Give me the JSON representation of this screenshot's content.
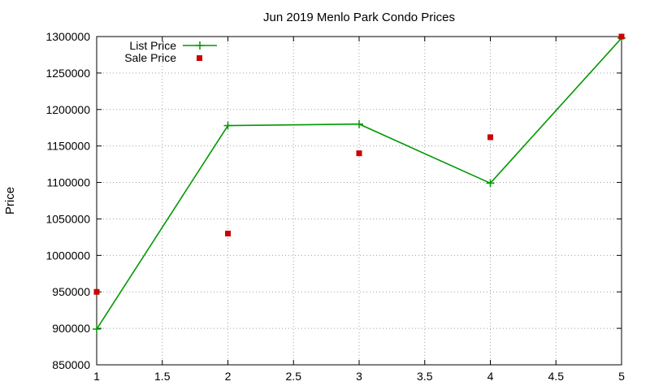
{
  "chart_data": {
    "type": "line",
    "title": "Jun 2019 Menlo Park Condo Prices",
    "xlabel": "",
    "ylabel": "Price",
    "xlim": [
      1,
      5
    ],
    "ylim": [
      850000,
      1300000
    ],
    "x_ticks": [
      1,
      1.5,
      2,
      2.5,
      3,
      3.5,
      4,
      4.5,
      5
    ],
    "y_ticks": [
      850000,
      900000,
      950000,
      1000000,
      1050000,
      1100000,
      1150000,
      1200000,
      1250000,
      1300000
    ],
    "x_tick_labels": [
      "1",
      "1.5",
      "2",
      "2.5",
      "3",
      "3.5",
      "4",
      "4.5",
      "5"
    ],
    "y_tick_labels": [
      "850000",
      "900000",
      "950000",
      "1000000",
      "1050000",
      "1100000",
      "1150000",
      "1200000",
      "1250000",
      "1300000"
    ],
    "grid": true,
    "legend_position": "top-left",
    "series": [
      {
        "name": "List Price",
        "style": "line-with-plus-markers",
        "color": "#009900",
        "x": [
          1,
          2,
          3,
          4,
          5
        ],
        "y": [
          899000,
          1178000,
          1180000,
          1099000,
          1298000
        ]
      },
      {
        "name": "Sale Price",
        "style": "square-markers",
        "color": "#cc0000",
        "x": [
          1,
          2,
          3,
          4,
          5
        ],
        "y": [
          950000,
          1030000,
          1140000,
          1162000,
          1300000
        ]
      }
    ]
  }
}
